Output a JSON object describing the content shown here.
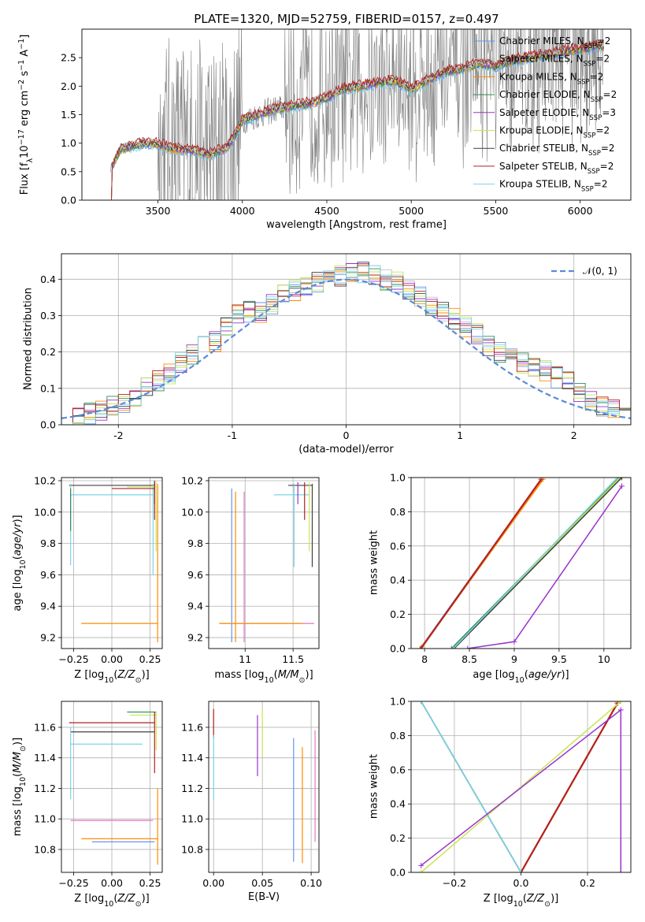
{
  "figure": {
    "title": "PLATE=1320, MJD=52759, FIBERID=0157, z=0.497"
  },
  "colors": {
    "Chabrier MILES": "#6495ed",
    "Salpeter MILES": "#c0c0c0",
    "Kroupa MILES": "#ff8c00",
    "Chabrier ELODIE": "#2e8b57",
    "Salpeter ELODIE": "#9932cc",
    "Kroupa ELODIE": "#c8e650",
    "Chabrier STELIB": "#404040",
    "Salpeter STELIB": "#b22222",
    "Kroupa STELIB": "#7ad4e6",
    "data": "#808080",
    "normal_curve": "#5b8bd6"
  },
  "chart_data": [
    {
      "id": "spectrum",
      "type": "line",
      "title": "PLATE=1320, MJD=52759, FIBERID=0157, z=0.497",
      "xlabel": "wavelength [Angstrom, rest frame]",
      "ylabel": "Flux [f_λ 10^-17 erg cm^-2 s^-1 A^-1]",
      "xlim": [
        3050,
        6300
      ],
      "ylim": [
        0,
        3.0
      ],
      "xticks": [
        3500,
        4000,
        4500,
        5000,
        5500,
        6000
      ],
      "yticks": [
        0.0,
        0.5,
        1.0,
        1.5,
        2.0,
        2.5
      ],
      "grid": false,
      "legend_position": "top-right",
      "legend": [
        {
          "name": "Chabrier MILES",
          "sub": "N",
          "label": "SSP",
          "value": "=2"
        },
        {
          "name": "Salpeter MILES",
          "sub": "N",
          "label": "SSP",
          "value": "=2"
        },
        {
          "name": "Kroupa MILES",
          "sub": "N",
          "label": "SSP",
          "value": "=2"
        },
        {
          "name": "Chabrier ELODIE",
          "sub": "N",
          "label": "SSP",
          "value": "=2"
        },
        {
          "name": "Salpeter ELODIE",
          "sub": "N",
          "label": "SSP",
          "value": "=3"
        },
        {
          "name": "Kroupa ELODIE",
          "sub": "N",
          "label": "SSP",
          "value": "=2"
        },
        {
          "name": "Chabrier STELIB",
          "sub": "N",
          "label": "SSP",
          "value": "=2"
        },
        {
          "name": "Salpeter STELIB",
          "sub": "N",
          "label": "SSP",
          "value": "=2"
        },
        {
          "name": "Kroupa STELIB",
          "sub": "N",
          "label": "SSP",
          "value": "=2"
        }
      ],
      "model_continuum": {
        "x": [
          3220,
          3280,
          3350,
          3420,
          3500,
          3600,
          3700,
          3800,
          3900,
          3950,
          4000,
          4100,
          4200,
          4300,
          4400,
          4500,
          4600,
          4700,
          4800,
          4900,
          5000,
          5100,
          5200,
          5300,
          5400,
          5500,
          5600,
          5700,
          5800,
          5900,
          6000,
          6100,
          6140
        ],
        "y": [
          0.55,
          0.9,
          0.95,
          1.0,
          0.98,
          0.9,
          0.88,
          0.8,
          0.9,
          1.1,
          1.4,
          1.5,
          1.6,
          1.65,
          1.7,
          1.8,
          1.95,
          2.0,
          2.05,
          2.1,
          1.95,
          2.1,
          2.25,
          2.3,
          2.4,
          2.35,
          2.45,
          2.5,
          2.55,
          2.6,
          2.65,
          2.7,
          2.7
        ]
      }
    },
    {
      "id": "residual_hist",
      "type": "line",
      "xlabel": "(data-model)/error",
      "ylabel": "Normed distribution",
      "xlim": [
        -2.5,
        2.5
      ],
      "ylim": [
        0,
        0.47
      ],
      "xticks": [
        -2,
        -1,
        0,
        1,
        2
      ],
      "yticks": [
        0.0,
        0.1,
        0.2,
        0.3,
        0.4
      ],
      "grid": true,
      "legend_position": "top-right",
      "normal_label": "𝒩(0, 1)",
      "bin_centers": [
        -2.45,
        -2.35,
        -2.25,
        -2.15,
        -2.05,
        -1.95,
        -1.85,
        -1.75,
        -1.65,
        -1.55,
        -1.45,
        -1.35,
        -1.25,
        -1.15,
        -1.05,
        -0.95,
        -0.85,
        -0.75,
        -0.65,
        -0.55,
        -0.45,
        -0.35,
        -0.25,
        -0.15,
        -0.05,
        0.05,
        0.15,
        0.25,
        0.35,
        0.45,
        0.55,
        0.65,
        0.75,
        0.85,
        0.95,
        1.05,
        1.15,
        1.25,
        1.35,
        1.45,
        1.55,
        1.65,
        1.75,
        1.85,
        1.95,
        2.05,
        2.15,
        2.25,
        2.35,
        2.45
      ],
      "base_hist": [
        0.02,
        0.03,
        0.03,
        0.04,
        0.05,
        0.06,
        0.08,
        0.1,
        0.12,
        0.14,
        0.17,
        0.19,
        0.22,
        0.23,
        0.27,
        0.3,
        0.31,
        0.31,
        0.33,
        0.36,
        0.37,
        0.38,
        0.39,
        0.4,
        0.41,
        0.42,
        0.42,
        0.41,
        0.4,
        0.39,
        0.37,
        0.35,
        0.33,
        0.31,
        0.29,
        0.27,
        0.25,
        0.22,
        0.2,
        0.19,
        0.17,
        0.16,
        0.15,
        0.13,
        0.12,
        0.09,
        0.07,
        0.05,
        0.04,
        0.03
      ]
    },
    {
      "id": "z_age",
      "type": "scatter",
      "xlabel": "Z [log10(Z/Z⊙)]",
      "ylabel": "age [log10(age/yr)]",
      "xlim": [
        -0.33,
        0.33
      ],
      "ylim": [
        9.13,
        10.22
      ],
      "xticks": [
        -0.25,
        0.0,
        0.25
      ],
      "xtick_labels": [
        "−0.25",
        "0.00",
        "0.25"
      ],
      "yticks": [
        9.2,
        9.4,
        9.6,
        9.8,
        10.0,
        10.2
      ],
      "grid": true
    },
    {
      "id": "mass_age",
      "type": "scatter",
      "xlabel": "mass [log10(M/M⊙)]",
      "ylabel": "",
      "xlim": [
        10.62,
        11.77
      ],
      "ylim": [
        9.13,
        10.22
      ],
      "xticks": [
        11.0,
        11.5
      ],
      "yticks": [
        9.2,
        9.4,
        9.6,
        9.8,
        10.0,
        10.2
      ],
      "grid": true
    },
    {
      "id": "age_massweight",
      "type": "line",
      "xlabel": "age [log10(age/yr)]",
      "ylabel": "mass weight",
      "xlim": [
        7.85,
        10.3
      ],
      "ylim": [
        0,
        1.0
      ],
      "xticks": [
        8.0,
        8.5,
        9.0,
        9.5,
        10.0
      ],
      "yticks": [
        0.0,
        0.2,
        0.4,
        0.6,
        0.8,
        1.0
      ],
      "grid": true,
      "series": [
        {
          "name": "Chabrier MILES",
          "x": [
            7.95,
            9.3
          ],
          "y": [
            0.0,
            0.99
          ]
        },
        {
          "name": "Kroupa MILES",
          "x": [
            7.97,
            9.32
          ],
          "y": [
            0.01,
            0.99
          ]
        },
        {
          "name": "Salpeter STELIB",
          "x": [
            7.96,
            9.3
          ],
          "y": [
            0.0,
            0.99
          ]
        },
        {
          "name": "Chabrier ELODIE",
          "x": [
            8.3,
            10.17
          ],
          "y": [
            0.0,
            1.0
          ]
        },
        {
          "name": "Kroupa ELODIE",
          "x": [
            8.32,
            10.18
          ],
          "y": [
            0.0,
            1.0
          ]
        },
        {
          "name": "Chabrier STELIB",
          "x": [
            8.33,
            10.2
          ],
          "y": [
            0.0,
            1.0
          ]
        },
        {
          "name": "Kroupa STELIB",
          "x": [
            8.32,
            10.15
          ],
          "y": [
            0.0,
            1.0
          ]
        },
        {
          "name": "Salpeter ELODIE",
          "x": [
            8.48,
            9.0,
            10.2
          ],
          "y": [
            0.0,
            0.04,
            0.95
          ]
        }
      ]
    },
    {
      "id": "z_mass",
      "type": "scatter",
      "xlabel": "Z [log10(Z/Z⊙)]",
      "ylabel": "mass [log10(M/M⊙)]",
      "xlim": [
        -0.33,
        0.33
      ],
      "ylim": [
        10.65,
        11.77
      ],
      "xticks": [
        -0.25,
        0.0,
        0.25
      ],
      "xtick_labels": [
        "−0.25",
        "0.00",
        "0.25"
      ],
      "yticks": [
        10.8,
        11.0,
        11.2,
        11.4,
        11.6
      ],
      "grid": true
    },
    {
      "id": "ebv_mass",
      "type": "scatter",
      "xlabel": "E(B-V)",
      "ylabel": "",
      "xlim": [
        -0.005,
        0.108
      ],
      "ylim": [
        10.65,
        11.77
      ],
      "xticks": [
        0.0,
        0.05,
        0.1
      ],
      "xtick_labels": [
        "0.00",
        "0.05",
        "0.10"
      ],
      "yticks": [
        10.8,
        11.0,
        11.2,
        11.4,
        11.6
      ],
      "grid": true
    },
    {
      "id": "z_massweight",
      "type": "line",
      "xlabel": "Z [log10(Z/Z⊙)]",
      "ylabel": "mass weight",
      "xlim": [
        -0.33,
        0.33
      ],
      "ylim": [
        0,
        1.0
      ],
      "xticks": [
        -0.2,
        0.0,
        0.2
      ],
      "xtick_labels": [
        "−0.2",
        "0.0",
        "0.2"
      ],
      "yticks": [
        0.0,
        0.2,
        0.4,
        0.6,
        0.8,
        1.0
      ],
      "grid": true,
      "series": [
        {
          "name": "Chabrier MILES",
          "x": [
            0.0,
            0.29
          ],
          "y": [
            0.0,
            0.99
          ]
        },
        {
          "name": "Kroupa MILES",
          "x": [
            0.0,
            0.29
          ],
          "y": [
            0.0,
            0.99
          ]
        },
        {
          "name": "Salpeter STELIB",
          "x": [
            0.0,
            0.29
          ],
          "y": [
            0.0,
            0.99
          ]
        },
        {
          "name": "Kroupa ELODIE",
          "x": [
            -0.3,
            0.3
          ],
          "y": [
            0.0,
            1.0
          ]
        },
        {
          "name": "Chabrier ELODIE",
          "x": [
            -0.3,
            0.0
          ],
          "y": [
            1.0,
            0.0
          ]
        },
        {
          "name": "Chabrier STELIB",
          "x": [
            -0.3,
            0.0
          ],
          "y": [
            1.0,
            0.0
          ]
        },
        {
          "name": "Kroupa STELIB",
          "x": [
            -0.3,
            0.0
          ],
          "y": [
            1.0,
            0.0
          ]
        },
        {
          "name": "Salpeter ELODIE",
          "x": [
            -0.3,
            0.3,
            0.3
          ],
          "y": [
            0.04,
            0.95,
            0.0
          ]
        }
      ]
    }
  ]
}
